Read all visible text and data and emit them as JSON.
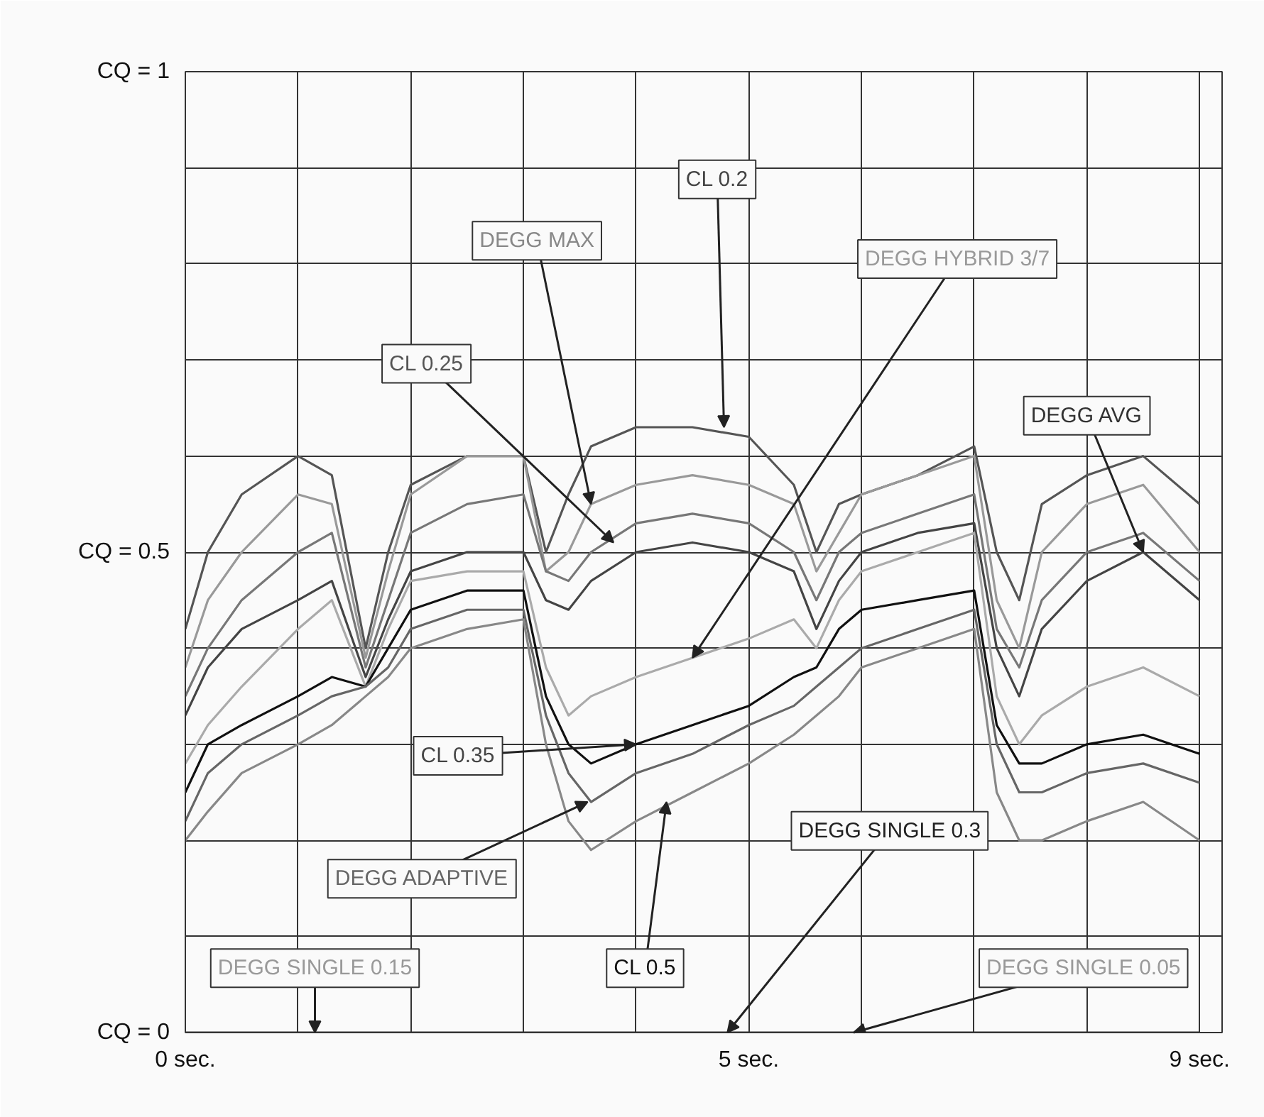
{
  "chart_data": {
    "type": "line",
    "xlim": [
      0,
      9.2
    ],
    "ylim": [
      0,
      1
    ],
    "xticks": [
      {
        "value": 0,
        "label": "0 sec."
      },
      {
        "value": 1,
        "label": null
      },
      {
        "value": 2,
        "label": null
      },
      {
        "value": 3,
        "label": null
      },
      {
        "value": 4,
        "label": null
      },
      {
        "value": 5,
        "label": "5 sec."
      },
      {
        "value": 6,
        "label": null
      },
      {
        "value": 7,
        "label": null
      },
      {
        "value": 8,
        "label": null
      },
      {
        "value": 9,
        "label": "9 sec."
      }
    ],
    "yticks": [
      {
        "value": 0,
        "label": "CQ = 0"
      },
      {
        "value": 0.1,
        "label": null
      },
      {
        "value": 0.2,
        "label": null
      },
      {
        "value": 0.3,
        "label": null
      },
      {
        "value": 0.4,
        "label": null
      },
      {
        "value": 0.5,
        "label": "CQ = 0.5"
      },
      {
        "value": 0.6,
        "label": null
      },
      {
        "value": 0.7,
        "label": null
      },
      {
        "value": 0.8,
        "label": null
      },
      {
        "value": 0.9,
        "label": null
      },
      {
        "value": 1,
        "label": "CQ = 1"
      }
    ],
    "grid": true,
    "x": [
      0,
      0.2,
      0.5,
      1,
      1.3,
      1.6,
      1.8,
      2,
      2.5,
      3,
      3.2,
      3.4,
      3.6,
      4,
      4.5,
      5,
      5.4,
      5.6,
      5.8,
      6,
      6.5,
      7,
      7.2,
      7.4,
      7.6,
      8,
      8.5,
      9
    ],
    "series": [
      {
        "color": "#555555",
        "values": [
          0.42,
          0.5,
          0.56,
          0.6,
          0.58,
          0.4,
          0.5,
          0.57,
          0.6,
          0.6,
          0.5,
          0.56,
          0.61,
          0.63,
          0.63,
          0.62,
          0.57,
          0.5,
          0.55,
          0.56,
          0.58,
          0.61,
          0.5,
          0.45,
          0.55,
          0.58,
          0.6,
          0.55
        ]
      },
      {
        "color": "#999999",
        "values": [
          0.38,
          0.45,
          0.5,
          0.56,
          0.55,
          0.39,
          0.48,
          0.56,
          0.6,
          0.6,
          0.48,
          0.5,
          0.55,
          0.57,
          0.58,
          0.57,
          0.55,
          0.48,
          0.52,
          0.56,
          0.58,
          0.6,
          0.45,
          0.4,
          0.5,
          0.55,
          0.57,
          0.5
        ]
      },
      {
        "color": "#777777",
        "values": [
          0.35,
          0.4,
          0.45,
          0.5,
          0.52,
          0.38,
          0.45,
          0.52,
          0.55,
          0.56,
          0.48,
          0.47,
          0.5,
          0.53,
          0.54,
          0.53,
          0.5,
          0.45,
          0.5,
          0.52,
          0.54,
          0.56,
          0.42,
          0.38,
          0.45,
          0.5,
          0.52,
          0.47
        ]
      },
      {
        "color": "#444444",
        "values": [
          0.33,
          0.38,
          0.42,
          0.45,
          0.47,
          0.37,
          0.43,
          0.48,
          0.5,
          0.5,
          0.45,
          0.44,
          0.47,
          0.5,
          0.51,
          0.5,
          0.48,
          0.42,
          0.47,
          0.5,
          0.52,
          0.53,
          0.4,
          0.35,
          0.42,
          0.47,
          0.5,
          0.45
        ]
      },
      {
        "color": "#aaaaaa",
        "values": [
          0.28,
          0.32,
          0.36,
          0.42,
          0.45,
          0.36,
          0.42,
          0.47,
          0.48,
          0.48,
          0.38,
          0.33,
          0.35,
          0.37,
          0.39,
          0.41,
          0.43,
          0.4,
          0.45,
          0.48,
          0.5,
          0.52,
          0.35,
          0.3,
          0.33,
          0.36,
          0.38,
          0.35
        ]
      },
      {
        "color": "#111111",
        "values": [
          0.25,
          0.3,
          0.32,
          0.35,
          0.37,
          0.36,
          0.4,
          0.44,
          0.46,
          0.46,
          0.35,
          0.3,
          0.28,
          0.3,
          0.32,
          0.34,
          0.37,
          0.38,
          0.42,
          0.44,
          0.45,
          0.46,
          0.32,
          0.28,
          0.28,
          0.3,
          0.31,
          0.29
        ]
      },
      {
        "color": "#666666",
        "values": [
          0.22,
          0.27,
          0.3,
          0.33,
          0.35,
          0.36,
          0.38,
          0.42,
          0.44,
          0.44,
          0.33,
          0.27,
          0.24,
          0.27,
          0.29,
          0.32,
          0.34,
          0.36,
          0.38,
          0.4,
          0.42,
          0.44,
          0.3,
          0.25,
          0.25,
          0.27,
          0.28,
          0.26
        ]
      },
      {
        "color": "#888888",
        "values": [
          0.2,
          0.23,
          0.27,
          0.3,
          0.32,
          0.35,
          0.37,
          0.4,
          0.42,
          0.43,
          0.3,
          0.22,
          0.19,
          0.22,
          0.25,
          0.28,
          0.31,
          0.33,
          0.35,
          0.38,
          0.4,
          0.42,
          0.25,
          0.2,
          0.2,
          0.22,
          0.24,
          0.2
        ]
      },
      {
        "color": "#333333",
        "values": [
          0,
          0,
          0,
          0,
          0,
          0,
          0,
          0,
          0,
          0,
          0,
          0,
          0,
          0,
          0,
          0,
          0,
          0,
          0,
          0,
          0,
          0,
          0,
          0,
          0,
          0,
          0,
          0
        ]
      }
    ],
    "annotations": [
      {
        "text": "CL 0.2",
        "x": 4.78,
        "y": 0.63
      },
      {
        "text": "DEGG MAX",
        "x": 3.6,
        "y": 0.55
      },
      {
        "text": "CL 0.25",
        "x": 3.8,
        "y": 0.51
      },
      {
        "text": "DEGG HYBRID 3/7",
        "x": 4.5,
        "y": 0.39
      },
      {
        "text": "DEGG AVG",
        "x": 8.5,
        "y": 0.5
      },
      {
        "text": "CL 0.35",
        "x": 4,
        "y": 0.3
      },
      {
        "text": "DEGG ADAPTIVE",
        "x": 3.57,
        "y": 0.24
      },
      {
        "text": "DEGG SINGLE 0.3",
        "x": 4.81,
        "y": 0
      },
      {
        "text": "DEGG SINGLE 0.15",
        "x": 1.15,
        "y": 0
      },
      {
        "text": "CL 0.5",
        "x": 4.27,
        "y": 0.24
      },
      {
        "text": "DEGG SINGLE 0.05",
        "x": 5.93,
        "y": 0
      }
    ]
  }
}
